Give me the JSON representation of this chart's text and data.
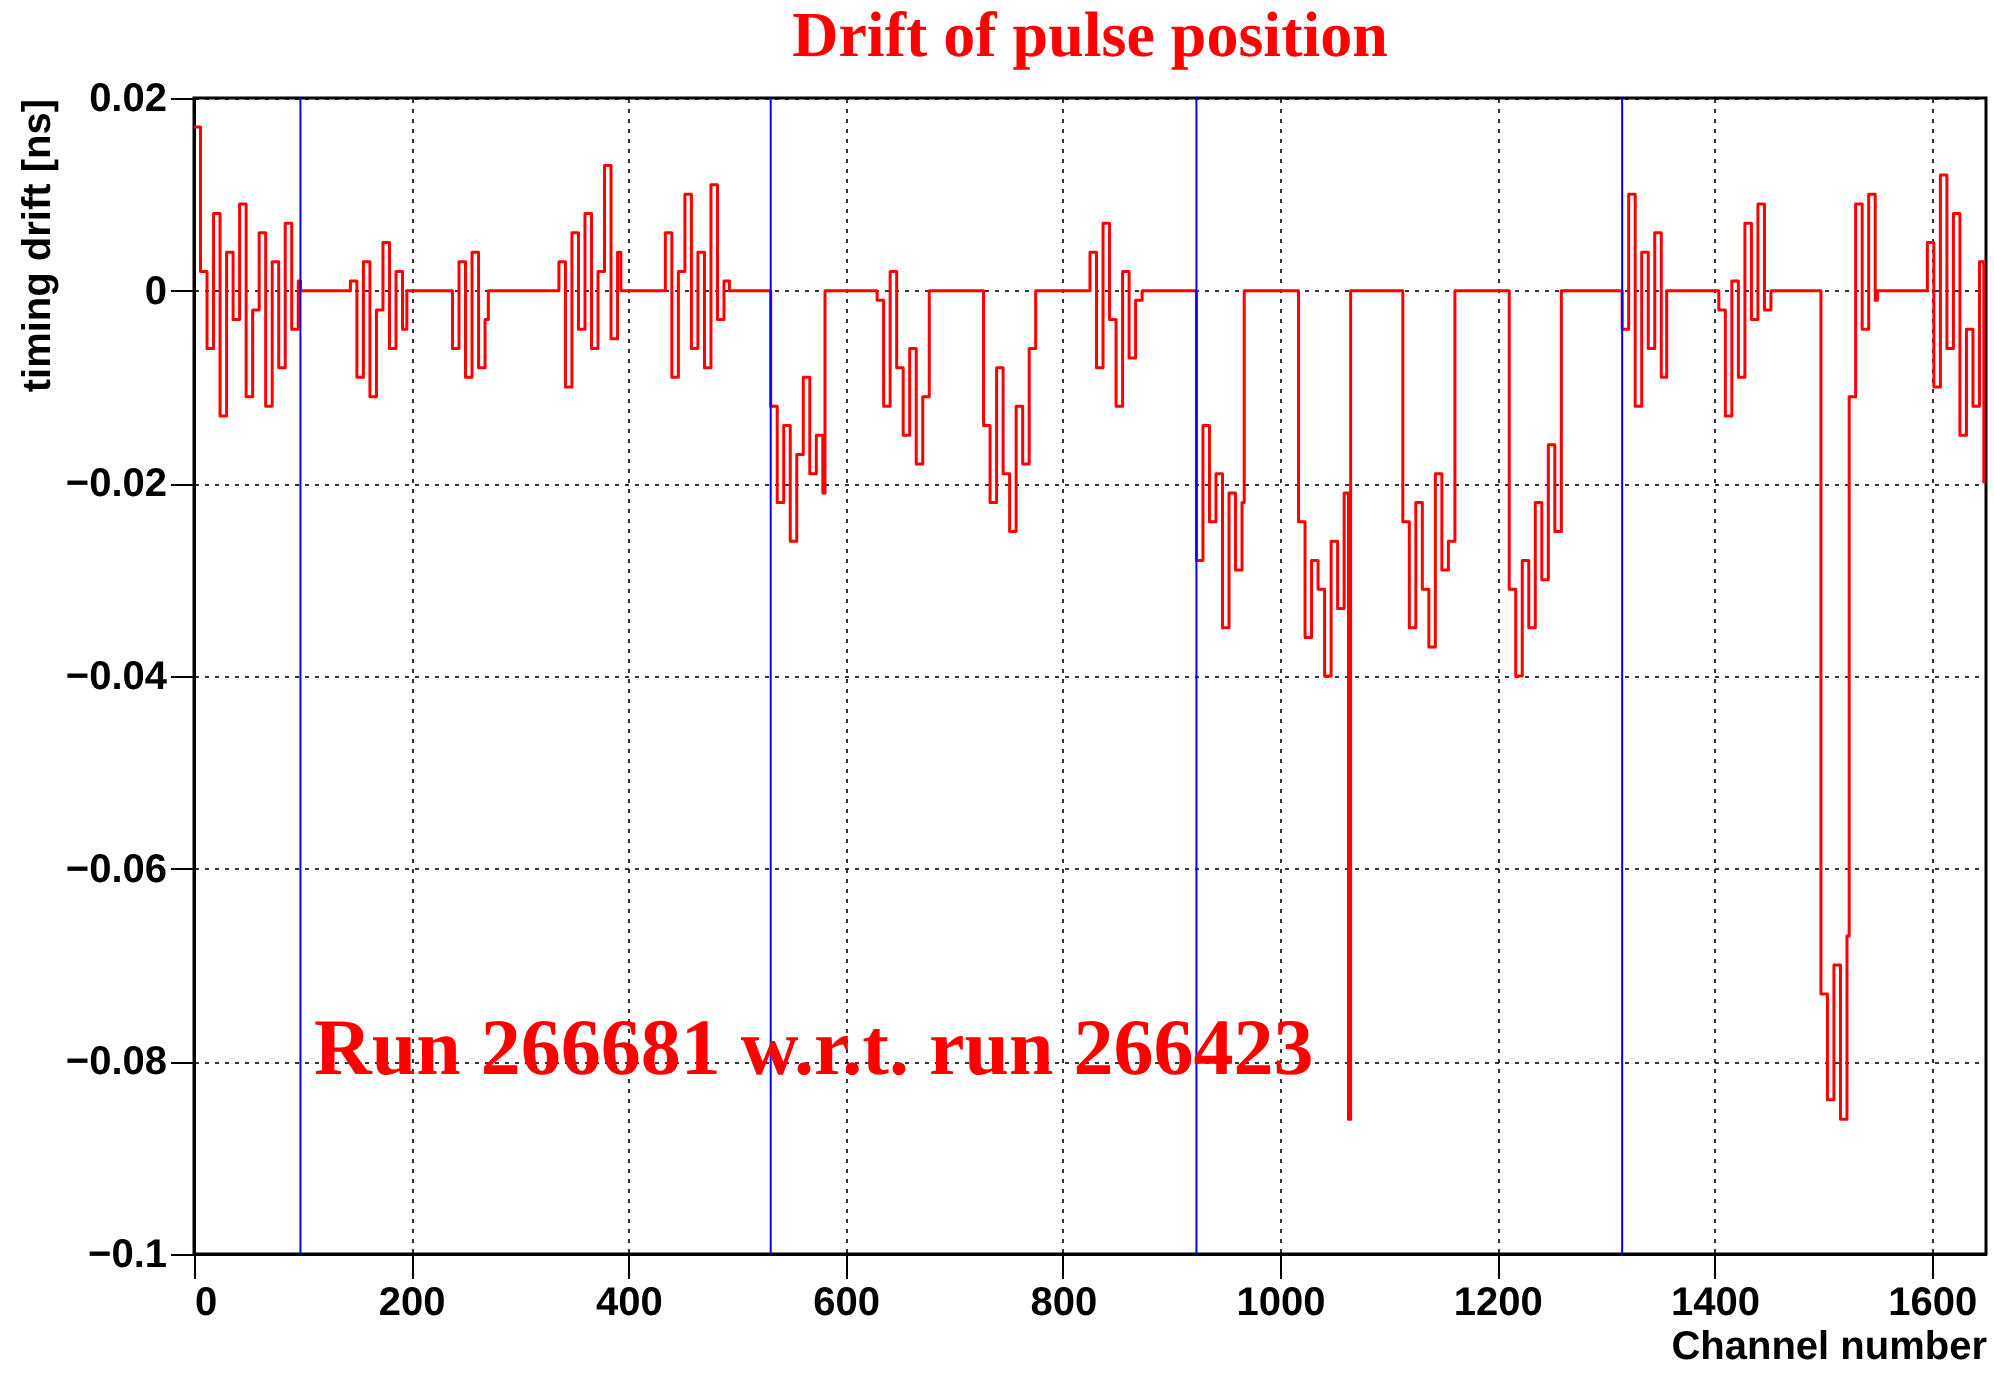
{
  "chart_data": {
    "type": "step",
    "title": "Drift of pulse position",
    "xlabel": "Channel number",
    "ylabel": "timing drift [ns]",
    "annotations": [
      "Run 266681 w.r.t. run 266423"
    ],
    "xlim": [
      0,
      1650
    ],
    "xticks": [
      0,
      200,
      400,
      600,
      800,
      1000,
      1200,
      1400,
      1600
    ],
    "ylim": [
      -0.1,
      0.02
    ],
    "yticks": [
      {
        "value": -0.1,
        "label": "−0.1"
      },
      {
        "value": -0.08,
        "label": "−0.08"
      },
      {
        "value": -0.06,
        "label": "−0.06"
      },
      {
        "value": -0.04,
        "label": "−0.04"
      },
      {
        "value": -0.02,
        "label": "−0.02"
      },
      0,
      0.02
    ],
    "grid": true,
    "ref_lines": [
      {
        "axis": "x",
        "value": 98,
        "color": "#0000ff"
      },
      {
        "axis": "x",
        "value": 531,
        "color": "#0000ff"
      },
      {
        "axis": "x",
        "value": 923,
        "color": "#0000ff"
      },
      {
        "axis": "x",
        "value": 1315,
        "color": "#0000ff"
      }
    ],
    "series": [
      {
        "color": "#ff0000",
        "x": [
          0,
          6,
          12,
          18,
          24,
          30,
          36,
          42,
          48,
          54,
          60,
          66,
          72,
          78,
          84,
          90,
          96,
          98,
          144,
          150,
          156,
          162,
          168,
          174,
          180,
          186,
          192,
          196,
          238,
          244,
          250,
          256,
          262,
          268,
          271,
          336,
          342,
          348,
          354,
          360,
          366,
          372,
          378,
          384,
          390,
          393,
          434,
          440,
          446,
          452,
          458,
          464,
          470,
          476,
          482,
          488,
          493,
          531,
          537,
          543,
          549,
          555,
          561,
          567,
          573,
          579,
          581,
          629,
          635,
          641,
          647,
          653,
          659,
          665,
          671,
          677,
          727,
          733,
          739,
          745,
          751,
          757,
          763,
          769,
          775,
          825,
          831,
          837,
          843,
          849,
          855,
          861,
          867,
          873,
          923,
          929,
          935,
          941,
          947,
          953,
          959,
          965,
          967,
          1017,
          1023,
          1029,
          1035,
          1041,
          1047,
          1053,
          1059,
          1063,
          1065,
          1113,
          1119,
          1125,
          1131,
          1137,
          1143,
          1149,
          1155,
          1161,
          1211,
          1217,
          1223,
          1229,
          1235,
          1241,
          1247,
          1253,
          1259,
          1315,
          1321,
          1327,
          1333,
          1339,
          1345,
          1351,
          1356,
          1404,
          1410,
          1416,
          1422,
          1428,
          1434,
          1440,
          1446,
          1452,
          1498,
          1504,
          1510,
          1516,
          1522,
          1524,
          1530,
          1536,
          1542,
          1548,
          1550,
          1596,
          1602,
          1608,
          1614,
          1620,
          1626,
          1632,
          1638,
          1644,
          1648
        ],
        "values": [
          0.017,
          0.002,
          -0.006,
          0.008,
          -0.013,
          0.004,
          -0.003,
          0.009,
          -0.011,
          -0.002,
          0.006,
          -0.012,
          0.003,
          -0.008,
          0.007,
          -0.004,
          0.001,
          0,
          0.001,
          -0.009,
          0.003,
          -0.011,
          -0.002,
          0.005,
          -0.006,
          0.002,
          -0.004,
          0,
          -0.006,
          0.003,
          -0.009,
          0.004,
          -0.008,
          -0.003,
          0,
          0.003,
          -0.01,
          0.006,
          -0.004,
          0.008,
          -0.006,
          0.002,
          0.013,
          -0.005,
          0.004,
          0,
          0.006,
          -0.009,
          0.002,
          0.01,
          -0.006,
          0.004,
          -0.008,
          0.011,
          -0.003,
          0.001,
          0,
          -0.012,
          -0.022,
          -0.014,
          -0.026,
          -0.017,
          -0.009,
          -0.019,
          -0.015,
          -0.021,
          0,
          -0.001,
          -0.012,
          0.002,
          -0.008,
          -0.015,
          -0.006,
          -0.018,
          -0.011,
          0,
          -0.014,
          -0.022,
          -0.008,
          -0.019,
          -0.025,
          -0.012,
          -0.018,
          -0.006,
          0,
          0.004,
          -0.008,
          0.007,
          -0.003,
          -0.012,
          0.002,
          -0.007,
          -0.001,
          0,
          -0.028,
          -0.014,
          -0.024,
          -0.019,
          -0.035,
          -0.021,
          -0.029,
          -0.022,
          0,
          -0.024,
          -0.036,
          -0.028,
          -0.031,
          -0.04,
          -0.026,
          -0.033,
          -0.021,
          -0.086,
          0,
          -0.024,
          -0.035,
          -0.022,
          -0.031,
          -0.037,
          -0.019,
          -0.029,
          -0.026,
          0,
          -0.031,
          -0.04,
          -0.028,
          -0.035,
          -0.022,
          -0.03,
          -0.016,
          -0.025,
          0,
          -0.004,
          0.01,
          -0.012,
          0.004,
          -0.006,
          0.006,
          -0.009,
          0,
          -0.002,
          -0.013,
          0.001,
          -0.009,
          0.007,
          -0.003,
          0.009,
          -0.002,
          0,
          -0.073,
          -0.084,
          -0.07,
          -0.086,
          -0.067,
          -0.011,
          0.009,
          -0.004,
          0.01,
          -0.001,
          0,
          0.005,
          -0.01,
          0.012,
          -0.006,
          0.008,
          -0.015,
          -0.004,
          -0.012,
          0.003,
          -0.02
        ]
      }
    ]
  }
}
